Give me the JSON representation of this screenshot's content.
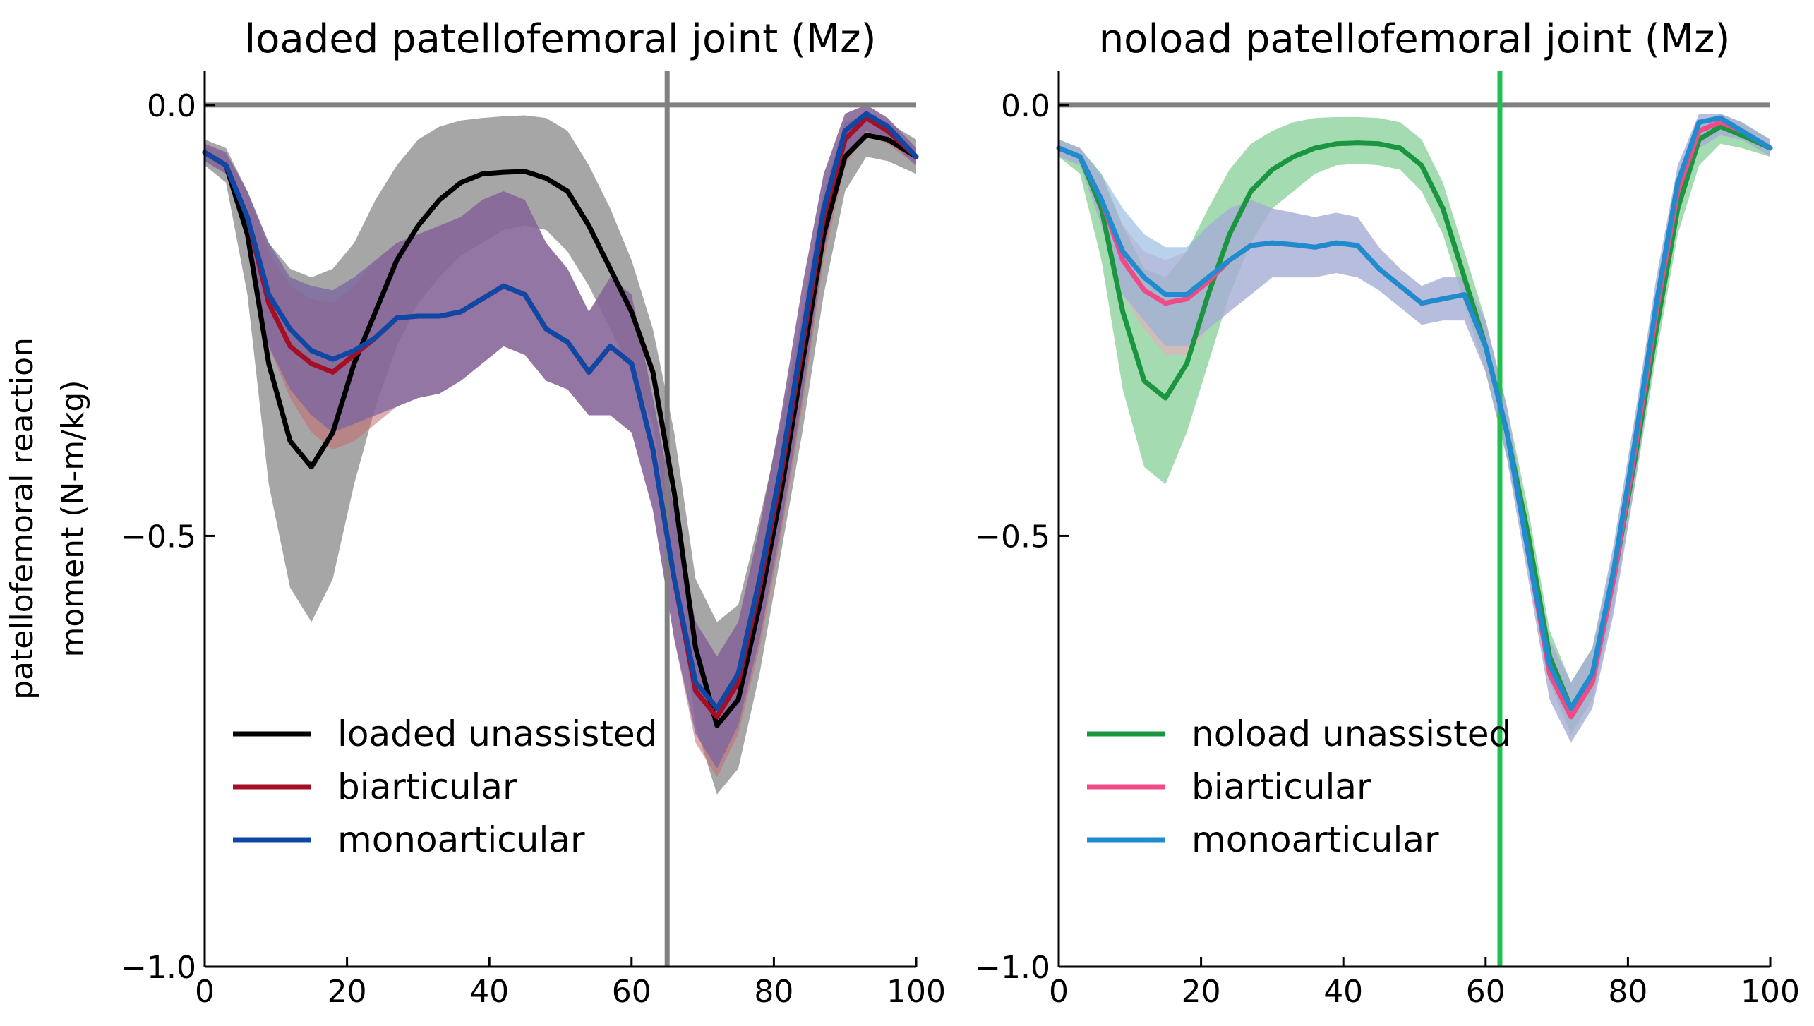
{
  "figure": {
    "ylabel_line1": "patellofemoral reaction",
    "ylabel_line2": "moment (N-m/kg)"
  },
  "chart_data": [
    {
      "type": "line",
      "title": "loaded patellofemoral joint (Mz)",
      "xlabel": "",
      "ylabel": "patellofemoral reaction moment (N-m/kg)",
      "xlim": [
        0,
        100
      ],
      "ylim": [
        -1.0,
        0.04
      ],
      "x_ticks": [
        0,
        20,
        40,
        60,
        80,
        100
      ],
      "x_tick_labels": [
        "0",
        "20",
        "40",
        "60",
        "80",
        "100"
      ],
      "y_ticks": [
        0.0,
        -0.5,
        -1.0
      ],
      "y_tick_labels": [
        "0.0",
        "−0.5",
        "−1.0"
      ],
      "hline": {
        "y": 0.0,
        "color": "#808080"
      },
      "vline": {
        "x": 65,
        "color": "#808080"
      },
      "grid": false,
      "legend_position": "bottom-left",
      "x": [
        0,
        3,
        6,
        9,
        12,
        15,
        18,
        21,
        24,
        27,
        30,
        33,
        36,
        39,
        42,
        45,
        48,
        51,
        54,
        57,
        60,
        63,
        66,
        69,
        72,
        75,
        78,
        81,
        84,
        87,
        90,
        93,
        96,
        100
      ],
      "series": [
        {
          "name": "loaded unassisted",
          "color": "#000000",
          "fill": "#808080",
          "fill_opacity": 0.7,
          "values": [
            -0.055,
            -0.07,
            -0.15,
            -0.3,
            -0.39,
            -0.42,
            -0.38,
            -0.3,
            -0.24,
            -0.18,
            -0.14,
            -0.11,
            -0.09,
            -0.08,
            -0.078,
            -0.077,
            -0.085,
            -0.1,
            -0.14,
            -0.19,
            -0.24,
            -0.31,
            -0.45,
            -0.63,
            -0.72,
            -0.69,
            -0.58,
            -0.45,
            -0.3,
            -0.15,
            -0.06,
            -0.035,
            -0.04,
            -0.06
          ],
          "upper": [
            -0.04,
            -0.05,
            -0.1,
            -0.16,
            -0.19,
            -0.2,
            -0.19,
            -0.16,
            -0.11,
            -0.07,
            -0.04,
            -0.025,
            -0.018,
            -0.015,
            -0.013,
            -0.012,
            -0.015,
            -0.03,
            -0.07,
            -0.12,
            -0.18,
            -0.26,
            -0.38,
            -0.55,
            -0.6,
            -0.58,
            -0.48,
            -0.37,
            -0.24,
            -0.1,
            -0.02,
            -0.01,
            -0.02,
            -0.04
          ],
          "lower": [
            -0.07,
            -0.09,
            -0.22,
            -0.44,
            -0.56,
            -0.6,
            -0.55,
            -0.44,
            -0.35,
            -0.28,
            -0.23,
            -0.2,
            -0.175,
            -0.16,
            -0.145,
            -0.14,
            -0.145,
            -0.17,
            -0.21,
            -0.26,
            -0.31,
            -0.37,
            -0.53,
            -0.72,
            -0.8,
            -0.77,
            -0.66,
            -0.52,
            -0.38,
            -0.22,
            -0.1,
            -0.06,
            -0.065,
            -0.08
          ]
        },
        {
          "name": "biarticular",
          "color": "#a50f26",
          "fill": "#c76a6e",
          "fill_opacity": 0.55,
          "values": [
            -0.055,
            -0.07,
            -0.13,
            -0.23,
            -0.28,
            -0.3,
            -0.31,
            -0.29,
            -0.27,
            -0.247,
            -0.245,
            -0.245,
            -0.24,
            -0.225,
            -0.21,
            -0.22,
            -0.26,
            -0.275,
            -0.31,
            -0.28,
            -0.3,
            -0.4,
            -0.55,
            -0.68,
            -0.71,
            -0.67,
            -0.56,
            -0.43,
            -0.28,
            -0.13,
            -0.04,
            -0.015,
            -0.03,
            -0.06
          ],
          "upper": [
            -0.045,
            -0.055,
            -0.1,
            -0.17,
            -0.21,
            -0.225,
            -0.23,
            -0.21,
            -0.18,
            -0.16,
            -0.15,
            -0.14,
            -0.13,
            -0.11,
            -0.1,
            -0.11,
            -0.16,
            -0.19,
            -0.24,
            -0.2,
            -0.22,
            -0.34,
            -0.47,
            -0.6,
            -0.64,
            -0.6,
            -0.49,
            -0.36,
            -0.21,
            -0.08,
            -0.01,
            0.0,
            -0.015,
            -0.05
          ],
          "lower": [
            -0.065,
            -0.08,
            -0.16,
            -0.28,
            -0.34,
            -0.38,
            -0.4,
            -0.39,
            -0.37,
            -0.35,
            -0.34,
            -0.335,
            -0.32,
            -0.3,
            -0.28,
            -0.29,
            -0.32,
            -0.33,
            -0.36,
            -0.36,
            -0.38,
            -0.47,
            -0.62,
            -0.74,
            -0.78,
            -0.73,
            -0.63,
            -0.5,
            -0.35,
            -0.18,
            -0.07,
            -0.035,
            -0.045,
            -0.07
          ]
        },
        {
          "name": "monoarticular",
          "color": "#0f47a5",
          "fill": "#7a64a0",
          "fill_opacity": 0.75,
          "values": [
            -0.055,
            -0.07,
            -0.13,
            -0.22,
            -0.26,
            -0.285,
            -0.295,
            -0.285,
            -0.27,
            -0.247,
            -0.245,
            -0.245,
            -0.24,
            -0.225,
            -0.21,
            -0.22,
            -0.26,
            -0.275,
            -0.31,
            -0.28,
            -0.3,
            -0.4,
            -0.55,
            -0.67,
            -0.7,
            -0.66,
            -0.55,
            -0.42,
            -0.27,
            -0.12,
            -0.03,
            -0.01,
            -0.025,
            -0.06
          ],
          "upper": [
            -0.045,
            -0.055,
            -0.1,
            -0.16,
            -0.2,
            -0.21,
            -0.215,
            -0.2,
            -0.18,
            -0.16,
            -0.15,
            -0.14,
            -0.13,
            -0.11,
            -0.1,
            -0.11,
            -0.16,
            -0.19,
            -0.24,
            -0.2,
            -0.22,
            -0.34,
            -0.47,
            -0.6,
            -0.64,
            -0.6,
            -0.49,
            -0.36,
            -0.21,
            -0.08,
            -0.01,
            0.0,
            -0.015,
            -0.05
          ],
          "lower": [
            -0.065,
            -0.08,
            -0.16,
            -0.28,
            -0.33,
            -0.36,
            -0.38,
            -0.37,
            -0.36,
            -0.35,
            -0.34,
            -0.335,
            -0.32,
            -0.3,
            -0.28,
            -0.29,
            -0.32,
            -0.33,
            -0.36,
            -0.36,
            -0.38,
            -0.47,
            -0.62,
            -0.73,
            -0.77,
            -0.72,
            -0.62,
            -0.49,
            -0.34,
            -0.17,
            -0.06,
            -0.03,
            -0.04,
            -0.07
          ]
        }
      ]
    },
    {
      "type": "line",
      "title": "noload patellofemoral joint (Mz)",
      "xlabel": "",
      "ylabel": "",
      "xlim": [
        0,
        100
      ],
      "ylim": [
        -1.0,
        0.04
      ],
      "x_ticks": [
        0,
        20,
        40,
        60,
        80,
        100
      ],
      "x_tick_labels": [
        "0",
        "20",
        "40",
        "60",
        "80",
        "100"
      ],
      "y_ticks": [
        0.0,
        -0.5,
        -1.0
      ],
      "y_tick_labels": [
        "0.0",
        "−0.5",
        "−1.0"
      ],
      "hline": {
        "y": 0.0,
        "color": "#808080"
      },
      "vline": {
        "x": 62,
        "color": "#1fc050"
      },
      "grid": false,
      "legend_position": "bottom-left",
      "x": [
        0,
        3,
        6,
        9,
        12,
        15,
        18,
        21,
        24,
        27,
        30,
        33,
        36,
        39,
        42,
        45,
        48,
        51,
        54,
        57,
        60,
        63,
        66,
        69,
        72,
        75,
        78,
        81,
        84,
        87,
        90,
        93,
        96,
        100
      ],
      "series": [
        {
          "name": "noload unassisted",
          "color": "#1a9641",
          "fill": "#7fcc8e",
          "fill_opacity": 0.7,
          "values": [
            -0.05,
            -0.06,
            -0.12,
            -0.24,
            -0.32,
            -0.34,
            -0.3,
            -0.22,
            -0.15,
            -0.1,
            -0.075,
            -0.06,
            -0.05,
            -0.045,
            -0.044,
            -0.045,
            -0.05,
            -0.07,
            -0.12,
            -0.2,
            -0.28,
            -0.38,
            -0.5,
            -0.64,
            -0.7,
            -0.66,
            -0.55,
            -0.41,
            -0.26,
            -0.12,
            -0.04,
            -0.025,
            -0.035,
            -0.05
          ],
          "upper": [
            -0.04,
            -0.05,
            -0.08,
            -0.14,
            -0.19,
            -0.2,
            -0.17,
            -0.12,
            -0.075,
            -0.045,
            -0.03,
            -0.02,
            -0.015,
            -0.014,
            -0.014,
            -0.015,
            -0.02,
            -0.04,
            -0.09,
            -0.17,
            -0.25,
            -0.35,
            -0.47,
            -0.61,
            -0.67,
            -0.63,
            -0.52,
            -0.38,
            -0.23,
            -0.09,
            -0.02,
            -0.01,
            -0.02,
            -0.04
          ],
          "lower": [
            -0.06,
            -0.08,
            -0.18,
            -0.33,
            -0.42,
            -0.44,
            -0.38,
            -0.3,
            -0.22,
            -0.16,
            -0.12,
            -0.1,
            -0.08,
            -0.07,
            -0.068,
            -0.07,
            -0.075,
            -0.1,
            -0.15,
            -0.23,
            -0.31,
            -0.41,
            -0.53,
            -0.67,
            -0.73,
            -0.69,
            -0.58,
            -0.44,
            -0.29,
            -0.15,
            -0.07,
            -0.045,
            -0.05,
            -0.06
          ]
        },
        {
          "name": "biarticular",
          "color": "#ef4b86",
          "fill": "#f4a3c0",
          "fill_opacity": 0.55,
          "values": [
            -0.05,
            -0.06,
            -0.11,
            -0.18,
            -0.215,
            -0.23,
            -0.225,
            -0.205,
            -0.18,
            -0.163,
            -0.16,
            -0.162,
            -0.165,
            -0.16,
            -0.163,
            -0.19,
            -0.21,
            -0.23,
            -0.225,
            -0.22,
            -0.28,
            -0.38,
            -0.52,
            -0.66,
            -0.71,
            -0.67,
            -0.55,
            -0.4,
            -0.24,
            -0.1,
            -0.03,
            -0.02,
            -0.03,
            -0.05
          ],
          "upper": [
            -0.04,
            -0.05,
            -0.085,
            -0.14,
            -0.17,
            -0.18,
            -0.17,
            -0.14,
            -0.12,
            -0.11,
            -0.12,
            -0.125,
            -0.13,
            -0.125,
            -0.13,
            -0.165,
            -0.19,
            -0.21,
            -0.2,
            -0.2,
            -0.25,
            -0.35,
            -0.49,
            -0.62,
            -0.67,
            -0.63,
            -0.51,
            -0.36,
            -0.2,
            -0.07,
            -0.01,
            -0.01,
            -0.02,
            -0.04
          ],
          "lower": [
            -0.06,
            -0.07,
            -0.14,
            -0.22,
            -0.26,
            -0.29,
            -0.29,
            -0.26,
            -0.24,
            -0.22,
            -0.2,
            -0.2,
            -0.2,
            -0.195,
            -0.2,
            -0.215,
            -0.235,
            -0.255,
            -0.25,
            -0.25,
            -0.31,
            -0.41,
            -0.55,
            -0.69,
            -0.74,
            -0.7,
            -0.59,
            -0.44,
            -0.27,
            -0.13,
            -0.05,
            -0.035,
            -0.04,
            -0.06
          ]
        },
        {
          "name": "monoarticular",
          "color": "#1f8ccf",
          "fill": "#8ab2de",
          "fill_opacity": 0.6,
          "values": [
            -0.05,
            -0.06,
            -0.11,
            -0.17,
            -0.2,
            -0.22,
            -0.22,
            -0.2,
            -0.18,
            -0.163,
            -0.16,
            -0.162,
            -0.165,
            -0.16,
            -0.163,
            -0.19,
            -0.21,
            -0.23,
            -0.225,
            -0.22,
            -0.28,
            -0.38,
            -0.52,
            -0.65,
            -0.7,
            -0.66,
            -0.54,
            -0.39,
            -0.23,
            -0.09,
            -0.02,
            -0.015,
            -0.03,
            -0.05
          ],
          "upper": [
            -0.04,
            -0.05,
            -0.08,
            -0.12,
            -0.15,
            -0.165,
            -0.165,
            -0.14,
            -0.12,
            -0.11,
            -0.12,
            -0.125,
            -0.13,
            -0.125,
            -0.13,
            -0.165,
            -0.19,
            -0.21,
            -0.2,
            -0.2,
            -0.25,
            -0.35,
            -0.49,
            -0.62,
            -0.67,
            -0.63,
            -0.51,
            -0.36,
            -0.2,
            -0.07,
            -0.01,
            -0.01,
            -0.02,
            -0.04
          ],
          "lower": [
            -0.06,
            -0.07,
            -0.14,
            -0.22,
            -0.25,
            -0.28,
            -0.28,
            -0.26,
            -0.24,
            -0.22,
            -0.2,
            -0.2,
            -0.2,
            -0.195,
            -0.2,
            -0.215,
            -0.235,
            -0.255,
            -0.25,
            -0.25,
            -0.31,
            -0.41,
            -0.55,
            -0.69,
            -0.74,
            -0.7,
            -0.59,
            -0.44,
            -0.27,
            -0.13,
            -0.05,
            -0.035,
            -0.04,
            -0.06
          ]
        }
      ]
    }
  ]
}
